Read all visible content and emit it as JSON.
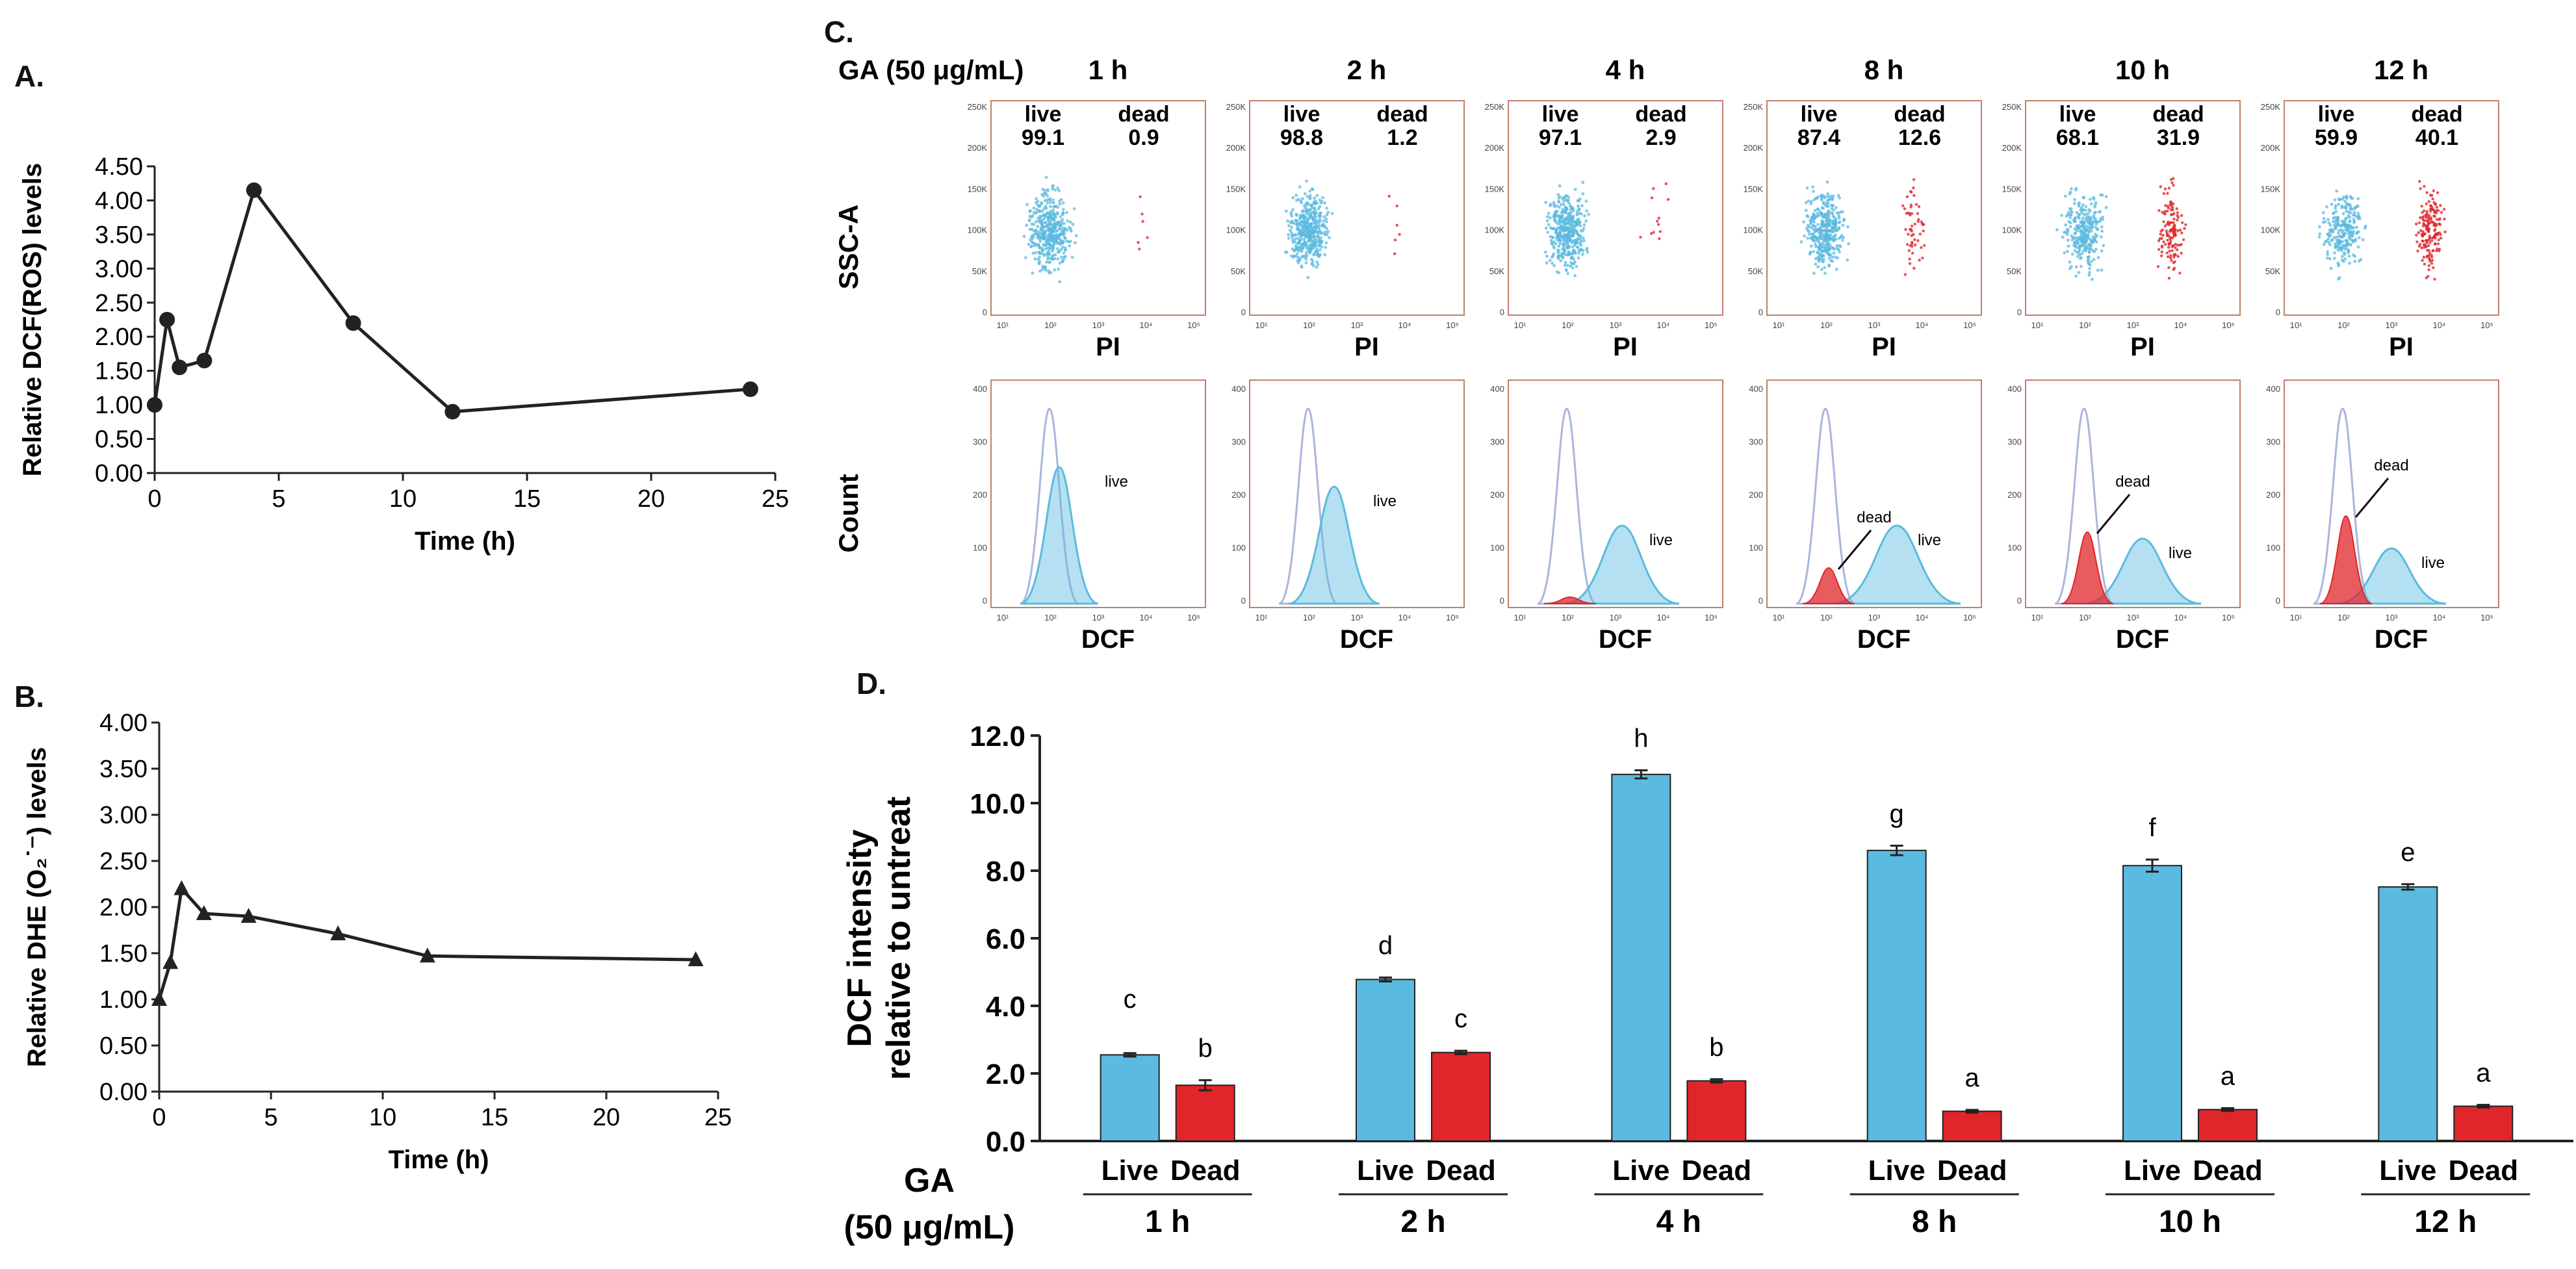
{
  "colors": {
    "live": "#5bbadf",
    "dead": "#e0262a",
    "axis": "#222222",
    "frame": "#c0806a"
  },
  "panel_a": {
    "label": "A.",
    "chart_data": {
      "type": "line",
      "ylabel": "Relative DCF(ROS) levels",
      "xlabel": "Time (h)",
      "x": [
        0,
        0.5,
        1,
        2,
        4,
        8,
        12,
        24
      ],
      "values": [
        1.0,
        2.25,
        1.55,
        1.65,
        4.15,
        2.2,
        0.9,
        1.23
      ],
      "marker": "circle",
      "ylim": [
        0,
        4.5
      ],
      "yticks": [
        "0.00",
        "0.50",
        "1.00",
        "1.50",
        "2.00",
        "2.50",
        "3.00",
        "3.50",
        "4.00",
        "4.50"
      ],
      "xlim": [
        0,
        25
      ],
      "xticks": [
        "0",
        "5",
        "10",
        "15",
        "20",
        "25"
      ]
    }
  },
  "panel_b": {
    "label": "B.",
    "chart_data": {
      "type": "line",
      "ylabel": "Relative DHE (O₂˙⁻) levels",
      "xlabel": "Time (h)",
      "x": [
        0,
        0.5,
        1,
        2,
        4,
        8,
        12,
        24
      ],
      "values": [
        1.0,
        1.4,
        2.2,
        1.93,
        1.9,
        1.71,
        1.47,
        1.43
      ],
      "marker": "triangle",
      "ylim": [
        0,
        4.0
      ],
      "yticks": [
        "0.00",
        "0.50",
        "1.00",
        "1.50",
        "2.00",
        "2.50",
        "3.00",
        "3.50",
        "4.00"
      ],
      "xlim": [
        0,
        25
      ],
      "xticks": [
        "0",
        "5",
        "10",
        "15",
        "20",
        "25"
      ]
    }
  },
  "panel_c": {
    "label": "C.",
    "treatment": "GA (50 μg/mL)",
    "row1_ylabel": "SSC-A",
    "row1_xlabel": "PI",
    "row2_ylabel": "Count",
    "row2_xlabel": "DCF",
    "scatter_yticks": [
      "250K",
      "200K",
      "150K",
      "100K",
      "50K",
      "0"
    ],
    "hist_yticks": [
      "400",
      "300",
      "200",
      "100",
      "0"
    ],
    "log_ticks": [
      "10¹",
      "10²",
      "10³",
      "10⁴",
      "10⁵"
    ],
    "live_word": "live",
    "dead_word": "dead",
    "timepoints": [
      {
        "time": "1 h",
        "live_pct": "99.1",
        "dead_pct": "0.9"
      },
      {
        "time": "2 h",
        "live_pct": "98.8",
        "dead_pct": "1.2"
      },
      {
        "time": "4 h",
        "live_pct": "97.1",
        "dead_pct": "2.9"
      },
      {
        "time": "8 h",
        "live_pct": "87.4",
        "dead_pct": "12.6"
      },
      {
        "time": "10 h",
        "live_pct": "68.1",
        "dead_pct": "31.9"
      },
      {
        "time": "12 h",
        "live_pct": "59.9",
        "dead_pct": "40.1"
      }
    ]
  },
  "panel_d": {
    "label": "D.",
    "x_treatment_line1": "GA",
    "x_treatment_line2": "(50 μg/mL)",
    "chart_data": {
      "type": "bar",
      "ylabel_line1": "DCF intensity",
      "ylabel_line2": "relative to untreat",
      "ylim": [
        0,
        12
      ],
      "yticks": [
        "0.0",
        "2.0",
        "4.0",
        "6.0",
        "8.0",
        "10.0",
        "12.0"
      ],
      "categories": [
        "1 h",
        "2 h",
        "4 h",
        "8 h",
        "10 h",
        "12 h"
      ],
      "series": [
        {
          "name": "Live",
          "values": [
            2.55,
            4.78,
            10.85,
            8.6,
            8.15,
            7.52
          ],
          "errors": [
            0.05,
            0.06,
            0.12,
            0.14,
            0.18,
            0.08
          ],
          "letters": [
            "c",
            "d",
            "h",
            "g",
            "f",
            "e"
          ]
        },
        {
          "name": "Dead",
          "values": [
            1.65,
            2.62,
            1.78,
            0.88,
            0.93,
            1.03
          ],
          "errors": [
            0.15,
            0.05,
            0.05,
            0.04,
            0.04,
            0.04
          ],
          "letters": [
            "b",
            "c",
            "b",
            "a",
            "a",
            "a"
          ]
        }
      ]
    }
  }
}
